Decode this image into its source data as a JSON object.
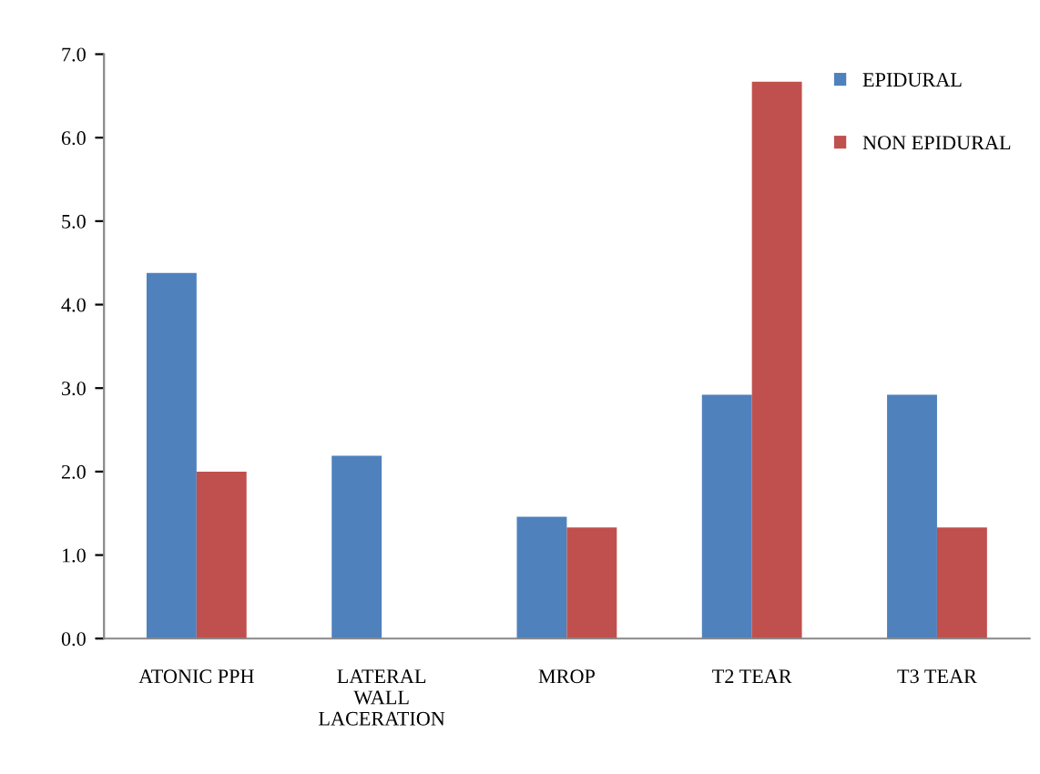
{
  "chart_data": {
    "type": "bar",
    "categories": [
      "ATONIC PPH",
      "LATERAL\nWALL\nLACERATION",
      "MROP",
      "T2 TEAR",
      "T3 TEAR"
    ],
    "series": [
      {
        "name": "EPIDURAL",
        "color": "#4f81bd",
        "values": [
          4.38,
          2.19,
          1.46,
          2.92,
          2.92
        ]
      },
      {
        "name": "NON EPIDURAL",
        "color": "#c0504d",
        "values": [
          2.0,
          0,
          1.33,
          6.67,
          1.33
        ]
      }
    ],
    "ylim": [
      0,
      7
    ],
    "yticks": [
      {
        "value": 0,
        "label": "0.0"
      },
      {
        "value": 1,
        "label": "1.0"
      },
      {
        "value": 2,
        "label": "2.0"
      },
      {
        "value": 3,
        "label": "3.0"
      },
      {
        "value": 4,
        "label": "4.0"
      },
      {
        "value": 5,
        "label": "5.0"
      },
      {
        "value": 6,
        "label": "6.0"
      },
      {
        "value": 7,
        "label": "7.0"
      }
    ],
    "grid": false,
    "legend": "top right"
  }
}
